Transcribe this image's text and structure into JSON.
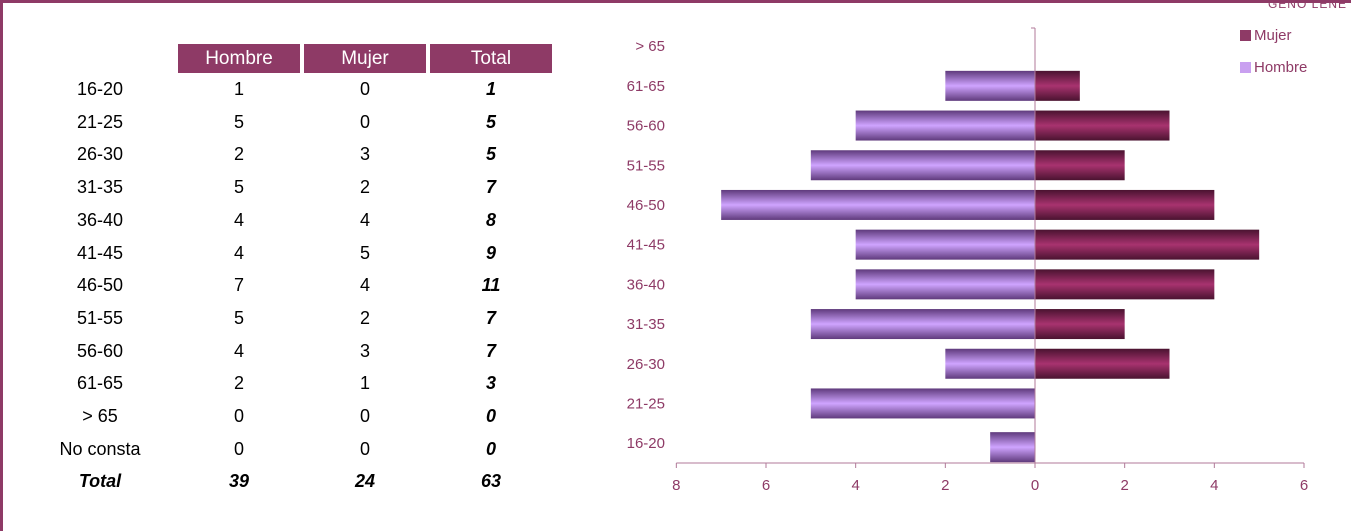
{
  "corner_label": "GENO LENE",
  "table": {
    "headers": [
      "Hombre",
      "Mujer",
      "Total"
    ],
    "rows": [
      {
        "label": "16-20",
        "hombre": "1",
        "mujer": "0",
        "total": "1"
      },
      {
        "label": "21-25",
        "hombre": "5",
        "mujer": "0",
        "total": "5"
      },
      {
        "label": "26-30",
        "hombre": "2",
        "mujer": "3",
        "total": "5"
      },
      {
        "label": "31-35",
        "hombre": "5",
        "mujer": "2",
        "total": "7"
      },
      {
        "label": "36-40",
        "hombre": "4",
        "mujer": "4",
        "total": "8"
      },
      {
        "label": "41-45",
        "hombre": "4",
        "mujer": "5",
        "total": "9"
      },
      {
        "label": "46-50",
        "hombre": "7",
        "mujer": "4",
        "total": "11"
      },
      {
        "label": "51-55",
        "hombre": "5",
        "mujer": "2",
        "total": "7"
      },
      {
        "label": "56-60",
        "hombre": "4",
        "mujer": "3",
        "total": "7"
      },
      {
        "label": "61-65",
        "hombre": "2",
        "mujer": "1",
        "total": "3"
      },
      {
        "label": "> 65",
        "hombre": "0",
        "mujer": "0",
        "total": "0"
      },
      {
        "label": "No consta",
        "hombre": "0",
        "mujer": "0",
        "total": "0"
      }
    ],
    "total_row": {
      "label": "Total",
      "hombre": "39",
      "mujer": "24",
      "total": "63"
    }
  },
  "chart_data": {
    "type": "bar",
    "orientation": "horizontal",
    "categories": [
      "16-20",
      "21-25",
      "26-30",
      "31-35",
      "36-40",
      "41-45",
      "46-50",
      "51-55",
      "56-60",
      "61-65",
      "> 65"
    ],
    "series": [
      {
        "name": "Mujer",
        "values": [
          0,
          0,
          3,
          2,
          4,
          5,
          4,
          2,
          3,
          1,
          0
        ],
        "color": "#8e3a66"
      },
      {
        "name": "Hombre",
        "values": [
          1,
          5,
          2,
          5,
          4,
          4,
          7,
          5,
          4,
          2,
          0
        ],
        "color": "#c9a0f0",
        "direction": "left"
      }
    ],
    "xlim": [
      -8,
      6
    ],
    "xticks": [
      -8,
      -6,
      -4,
      -2,
      0,
      2,
      4,
      6
    ],
    "xtick_labels": [
      "8",
      "6",
      "4",
      "2",
      "0",
      "2",
      "4",
      "6"
    ],
    "legend_position": "top-right",
    "axis_color": "#8e3a66"
  }
}
